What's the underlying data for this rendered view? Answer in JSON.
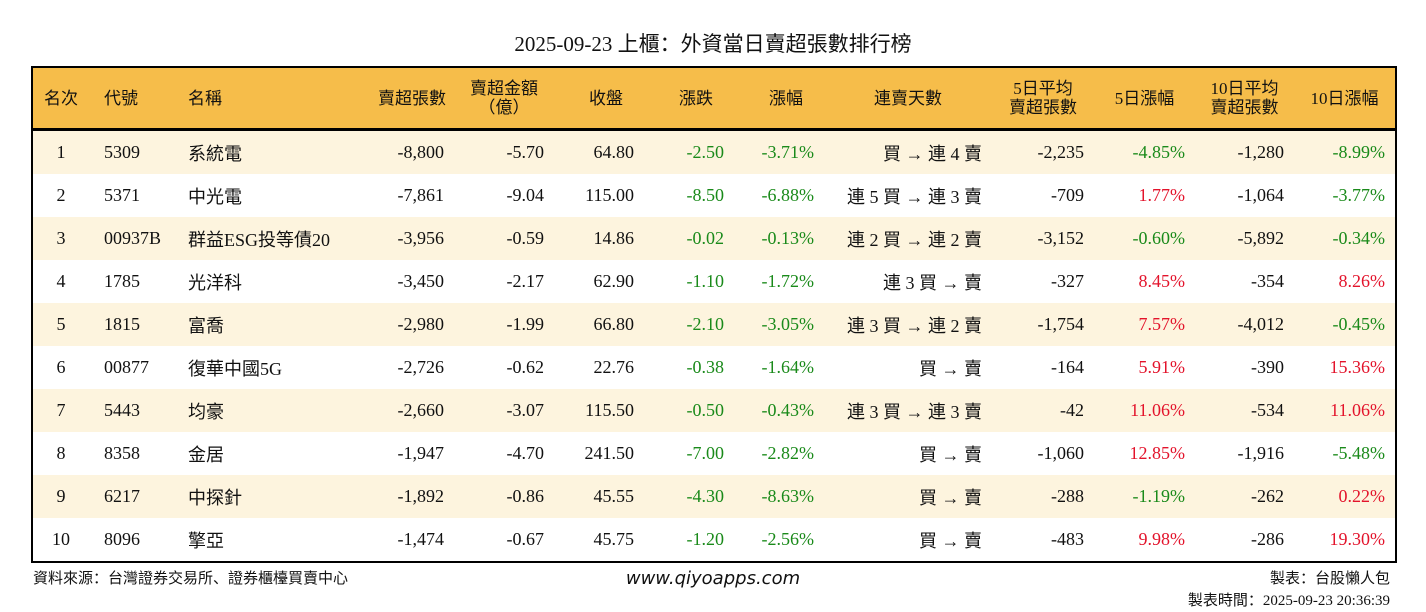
{
  "title": "2025-09-23 上櫃：外資當日賣超張數排行榜",
  "headers": {
    "rank": "名次",
    "code": "代號",
    "name": "名稱",
    "net_sell": "賣超張數",
    "amount_1": "賣超金額",
    "amount_2": "（億）",
    "close": "收盤",
    "change": "漲跌",
    "change_pct": "漲幅",
    "streak": "連賣天數",
    "avg5_1": "5日平均",
    "avg5_2": "賣超張數",
    "pct5": "5日漲幅",
    "avg10_1": "10日平均",
    "avg10_2": "賣超張數",
    "pct10": "10日漲幅"
  },
  "rows": [
    {
      "rank": "1",
      "code": "5309",
      "name": "系統電",
      "net_sell": "-8,800",
      "amount": "-5.70",
      "close": "64.80",
      "change": "-2.50",
      "change_pct": "-3.71%",
      "streak": "買 → 連 4 賣",
      "avg5": "-2,235",
      "pct5": "-4.85%",
      "avg10": "-1,280",
      "pct10": "-8.99%"
    },
    {
      "rank": "2",
      "code": "5371",
      "name": "中光電",
      "net_sell": "-7,861",
      "amount": "-9.04",
      "close": "115.00",
      "change": "-8.50",
      "change_pct": "-6.88%",
      "streak": "連 5 買 → 連 3 賣",
      "avg5": "-709",
      "pct5": "1.77%",
      "avg10": "-1,064",
      "pct10": "-3.77%"
    },
    {
      "rank": "3",
      "code": "00937B",
      "name": "群益ESG投等債20",
      "net_sell": "-3,956",
      "amount": "-0.59",
      "close": "14.86",
      "change": "-0.02",
      "change_pct": "-0.13%",
      "streak": "連 2 買 → 連 2 賣",
      "avg5": "-3,152",
      "pct5": "-0.60%",
      "avg10": "-5,892",
      "pct10": "-0.34%"
    },
    {
      "rank": "4",
      "code": "1785",
      "name": "光洋科",
      "net_sell": "-3,450",
      "amount": "-2.17",
      "close": "62.90",
      "change": "-1.10",
      "change_pct": "-1.72%",
      "streak": "連 3 買 → 賣",
      "avg5": "-327",
      "pct5": "8.45%",
      "avg10": "-354",
      "pct10": "8.26%"
    },
    {
      "rank": "5",
      "code": "1815",
      "name": "富喬",
      "net_sell": "-2,980",
      "amount": "-1.99",
      "close": "66.80",
      "change": "-2.10",
      "change_pct": "-3.05%",
      "streak": "連 3 買 → 連 2 賣",
      "avg5": "-1,754",
      "pct5": "7.57%",
      "avg10": "-4,012",
      "pct10": "-0.45%"
    },
    {
      "rank": "6",
      "code": "00877",
      "name": "復華中國5G",
      "net_sell": "-2,726",
      "amount": "-0.62",
      "close": "22.76",
      "change": "-0.38",
      "change_pct": "-1.64%",
      "streak": "買 → 賣",
      "avg5": "-164",
      "pct5": "5.91%",
      "avg10": "-390",
      "pct10": "15.36%"
    },
    {
      "rank": "7",
      "code": "5443",
      "name": "均豪",
      "net_sell": "-2,660",
      "amount": "-3.07",
      "close": "115.50",
      "change": "-0.50",
      "change_pct": "-0.43%",
      "streak": "連 3 買 → 連 3 賣",
      "avg5": "-42",
      "pct5": "11.06%",
      "avg10": "-534",
      "pct10": "11.06%"
    },
    {
      "rank": "8",
      "code": "8358",
      "name": "金居",
      "net_sell": "-1,947",
      "amount": "-4.70",
      "close": "241.50",
      "change": "-7.00",
      "change_pct": "-2.82%",
      "streak": "買 → 賣",
      "avg5": "-1,060",
      "pct5": "12.85%",
      "avg10": "-1,916",
      "pct10": "-5.48%"
    },
    {
      "rank": "9",
      "code": "6217",
      "name": "中探針",
      "net_sell": "-1,892",
      "amount": "-0.86",
      "close": "45.55",
      "change": "-4.30",
      "change_pct": "-8.63%",
      "streak": "買 → 賣",
      "avg5": "-288",
      "pct5": "-1.19%",
      "avg10": "-262",
      "pct10": "0.22%"
    },
    {
      "rank": "10",
      "code": "8096",
      "name": "擎亞",
      "net_sell": "-1,474",
      "amount": "-0.67",
      "close": "45.75",
      "change": "-1.20",
      "change_pct": "-2.56%",
      "streak": "買 → 賣",
      "avg5": "-483",
      "pct5": "9.98%",
      "avg10": "-286",
      "pct10": "19.30%"
    }
  ],
  "footer": {
    "source": "資料來源：台灣證券交易所、證券櫃檯買賣中心",
    "site": "www.qiyoapps.com",
    "maker": "製表：台股懶人包",
    "time": "製表時間：2025-09-23 20:36:39"
  },
  "colors": {
    "header_bg": "#f6bd4a",
    "row_alt": "#fdf4de",
    "up": "#e3132b",
    "down": "#1a8a1a"
  }
}
